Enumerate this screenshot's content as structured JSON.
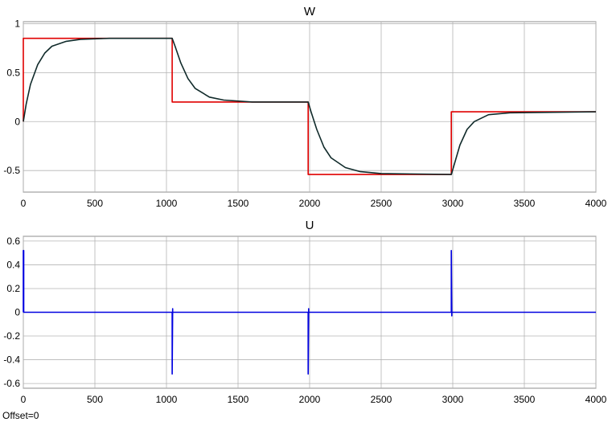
{
  "footer": {
    "offset_label": "Offset=0"
  },
  "chart_data": [
    {
      "type": "line",
      "title": "W",
      "xlabel": "",
      "ylabel": "",
      "xlim": [
        0,
        4000
      ],
      "ylim": [
        -0.72,
        1.02
      ],
      "xticks": [
        0,
        500,
        1000,
        1500,
        2000,
        2500,
        3000,
        3500,
        4000
      ],
      "yticks": [
        -0.5,
        0,
        0.5,
        1
      ],
      "xtick_labels": [
        "0",
        "500",
        "1000",
        "1500",
        "2000",
        "2500",
        "3000",
        "3500",
        "4000"
      ],
      "ytick_labels": [
        "-0.5",
        "0",
        "0.5",
        "1"
      ],
      "grid": true,
      "series": [
        {
          "color": "#e00000",
          "x": [
            0,
            0,
            1040,
            1040,
            1990,
            1990,
            2990,
            2990,
            4000
          ],
          "y": [
            0,
            0.85,
            0.85,
            0.2,
            0.2,
            -0.54,
            -0.54,
            0.1,
            0.1
          ]
        },
        {
          "color": "#102a2a",
          "x": [
            0,
            20,
            50,
            100,
            150,
            200,
            300,
            400,
            600,
            800,
            1040,
            1060,
            1100,
            1150,
            1200,
            1300,
            1400,
            1600,
            1990,
            2010,
            2050,
            2100,
            2150,
            2250,
            2350,
            2500,
            2990,
            3010,
            3050,
            3100,
            3150,
            3250,
            3400,
            4000
          ],
          "y": [
            0,
            0.18,
            0.38,
            0.58,
            0.7,
            0.77,
            0.82,
            0.84,
            0.85,
            0.85,
            0.85,
            0.77,
            0.6,
            0.44,
            0.34,
            0.25,
            0.22,
            0.2,
            0.2,
            0.1,
            -0.08,
            -0.26,
            -0.37,
            -0.47,
            -0.51,
            -0.53,
            -0.54,
            -0.44,
            -0.24,
            -0.08,
            0.0,
            0.07,
            0.09,
            0.1
          ]
        }
      ]
    },
    {
      "type": "line",
      "title": "U",
      "xlabel": "",
      "ylabel": "",
      "xlim": [
        0,
        4000
      ],
      "ylim": [
        -0.64,
        0.64
      ],
      "xticks": [
        0,
        500,
        1000,
        1500,
        2000,
        2500,
        3000,
        3500,
        4000
      ],
      "yticks": [
        -0.6,
        -0.4,
        -0.2,
        0,
        0.2,
        0.4,
        0.6
      ],
      "xtick_labels": [
        "0",
        "500",
        "1000",
        "1500",
        "2000",
        "2500",
        "3000",
        "3500",
        "4000"
      ],
      "ytick_labels": [
        "-0.6",
        "-0.4",
        "-0.2",
        "0",
        "0.2",
        "0.4",
        "0.6"
      ],
      "grid": true,
      "series": [
        {
          "color": "#0000e0",
          "x": [
            0,
            0,
            3,
            3,
            1040,
            1040,
            1043,
            1043,
            1990,
            1990,
            1993,
            1993,
            2990,
            2990,
            2993,
            2993,
            4000
          ],
          "y": [
            0,
            0.52,
            0.52,
            0,
            0,
            -0.52,
            0.03,
            0,
            0,
            -0.52,
            0.03,
            0,
            0,
            0.52,
            -0.03,
            0,
            0
          ]
        }
      ]
    }
  ]
}
